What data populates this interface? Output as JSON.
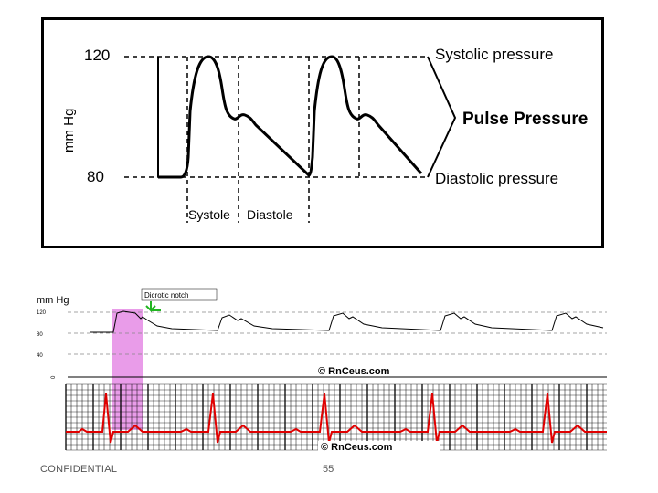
{
  "diagram_top": {
    "y_axis_label": "mm Hg",
    "tick_120": "120",
    "tick_80": "80",
    "systolic_label": "Systolic pressure",
    "pulse_label": "Pulse Pressure",
    "diastolic_label": "Diastolic pressure",
    "systole_label": "Systole",
    "diastole_label": "Diastole"
  },
  "diagram_bottom": {
    "y_axis_label": "mm Hg",
    "ticks": [
      "120",
      "80",
      "40",
      "0"
    ],
    "callout": "Dicrotic notch",
    "watermark_1": "© RnCeus.com",
    "watermark_2": "© RnCeus.com",
    "highlight_color": "#e27be2",
    "ecg_color": "#e00000",
    "grid_color": "#000000"
  },
  "footer": {
    "confidential": "CONFIDENTIAL",
    "page_number": "55"
  }
}
